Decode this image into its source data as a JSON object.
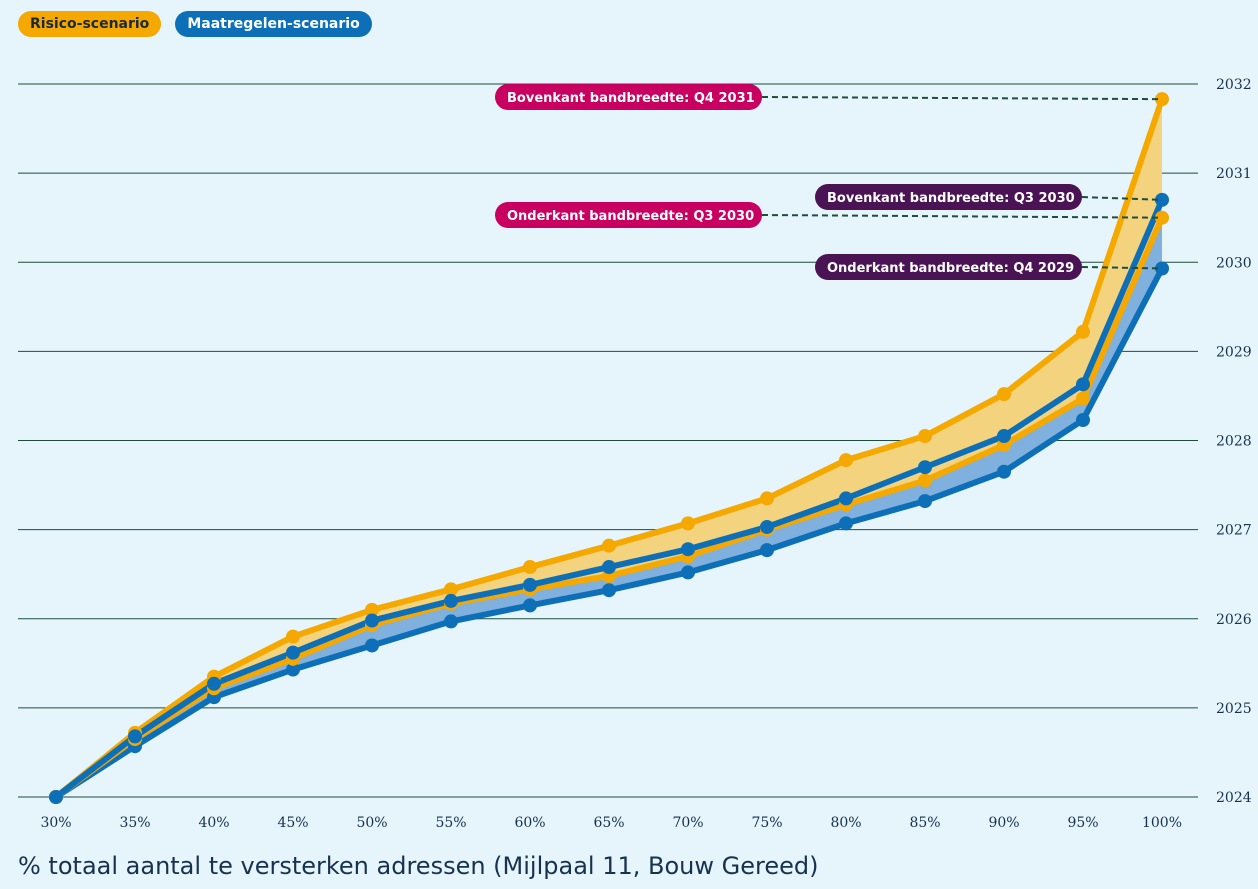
{
  "legend": {
    "risk_label": "Risico-scenario",
    "measures_label": "Maatregelen-scenario"
  },
  "colors": {
    "background": "#e6f4fc",
    "risk": "#f5a800",
    "risk_fill": "#f3d37d",
    "measures": "#0d6fb8",
    "measures_fill": "#7fb0de",
    "callout_risk": "#c8005f",
    "callout_measures": "#4a1454",
    "grid": "#1f4e3a"
  },
  "chart_data": {
    "type": "line",
    "xlabel": "% totaal aantal te versterken adressen (Mijlpaal 11, Bouw Gereed)",
    "categories": [
      "30%",
      "35%",
      "40%",
      "45%",
      "50%",
      "55%",
      "60%",
      "65%",
      "70%",
      "75%",
      "80%",
      "85%",
      "90%",
      "95%",
      "100%"
    ],
    "ylim": [
      2024,
      2032
    ],
    "yticks": [
      "2024",
      "2025",
      "2026",
      "2027",
      "2028",
      "2029",
      "2030",
      "2031",
      "2032"
    ],
    "grid": true,
    "series": [
      {
        "name": "Risico-scenario",
        "band": "upper",
        "values": [
          2024.0,
          2024.72,
          2025.35,
          2025.8,
          2026.1,
          2026.33,
          2026.58,
          2026.82,
          2027.07,
          2027.35,
          2027.78,
          2028.05,
          2028.52,
          2029.22,
          2031.83
        ]
      },
      {
        "name": "Risico-scenario",
        "band": "lower",
        "values": [
          2024.0,
          2024.65,
          2025.22,
          2025.55,
          2025.93,
          2026.17,
          2026.33,
          2026.48,
          2026.7,
          2027.0,
          2027.28,
          2027.55,
          2027.95,
          2028.47,
          2030.5
        ]
      },
      {
        "name": "Maatregelen-scenario",
        "band": "upper",
        "values": [
          2024.0,
          2024.68,
          2025.27,
          2025.62,
          2025.98,
          2026.2,
          2026.38,
          2026.58,
          2026.78,
          2027.03,
          2027.35,
          2027.7,
          2028.05,
          2028.63,
          2030.7
        ]
      },
      {
        "name": "Maatregelen-scenario",
        "band": "lower",
        "values": [
          2024.0,
          2024.57,
          2025.12,
          2025.43,
          2025.7,
          2025.97,
          2026.15,
          2026.32,
          2026.52,
          2026.77,
          2027.07,
          2027.32,
          2027.65,
          2028.23,
          2029.93
        ]
      }
    ],
    "annotations": [
      {
        "text": "Bovenkant bandbreedte:",
        "quarter": "Q4 2031",
        "value": 2031.83,
        "scenario": "risk"
      },
      {
        "text": "Bovenkant bandbreedte:",
        "quarter": "Q3 2030",
        "value": 2030.7,
        "scenario": "measures"
      },
      {
        "text": "Onderkant bandbreedte:",
        "quarter": "Q3 2030",
        "value": 2030.5,
        "scenario": "risk"
      },
      {
        "text": "Onderkant bandbreedte:",
        "quarter": "Q4 2029",
        "value": 2029.93,
        "scenario": "measures"
      }
    ]
  }
}
